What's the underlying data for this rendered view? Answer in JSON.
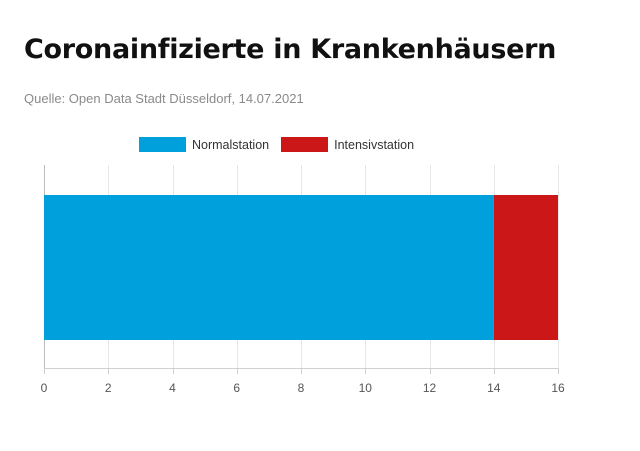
{
  "title": "Coronainfizierte in Krankenhäusern",
  "source": "Quelle: Open Data Stadt Düsseldorf, 14.07.2021",
  "chart_data": {
    "type": "bar",
    "orientation": "horizontal",
    "stacked": true,
    "categories": [
      ""
    ],
    "series": [
      {
        "name": "Normalstation",
        "values": [
          14
        ],
        "color": "#00a0dc"
      },
      {
        "name": "Intensivstation",
        "values": [
          2
        ],
        "color": "#cc1719"
      }
    ],
    "xlim": [
      0,
      16
    ],
    "xticks": [
      "0",
      "2",
      "4",
      "6",
      "8",
      "10",
      "12",
      "14",
      "16"
    ],
    "grid": true,
    "legend_position": "top"
  }
}
